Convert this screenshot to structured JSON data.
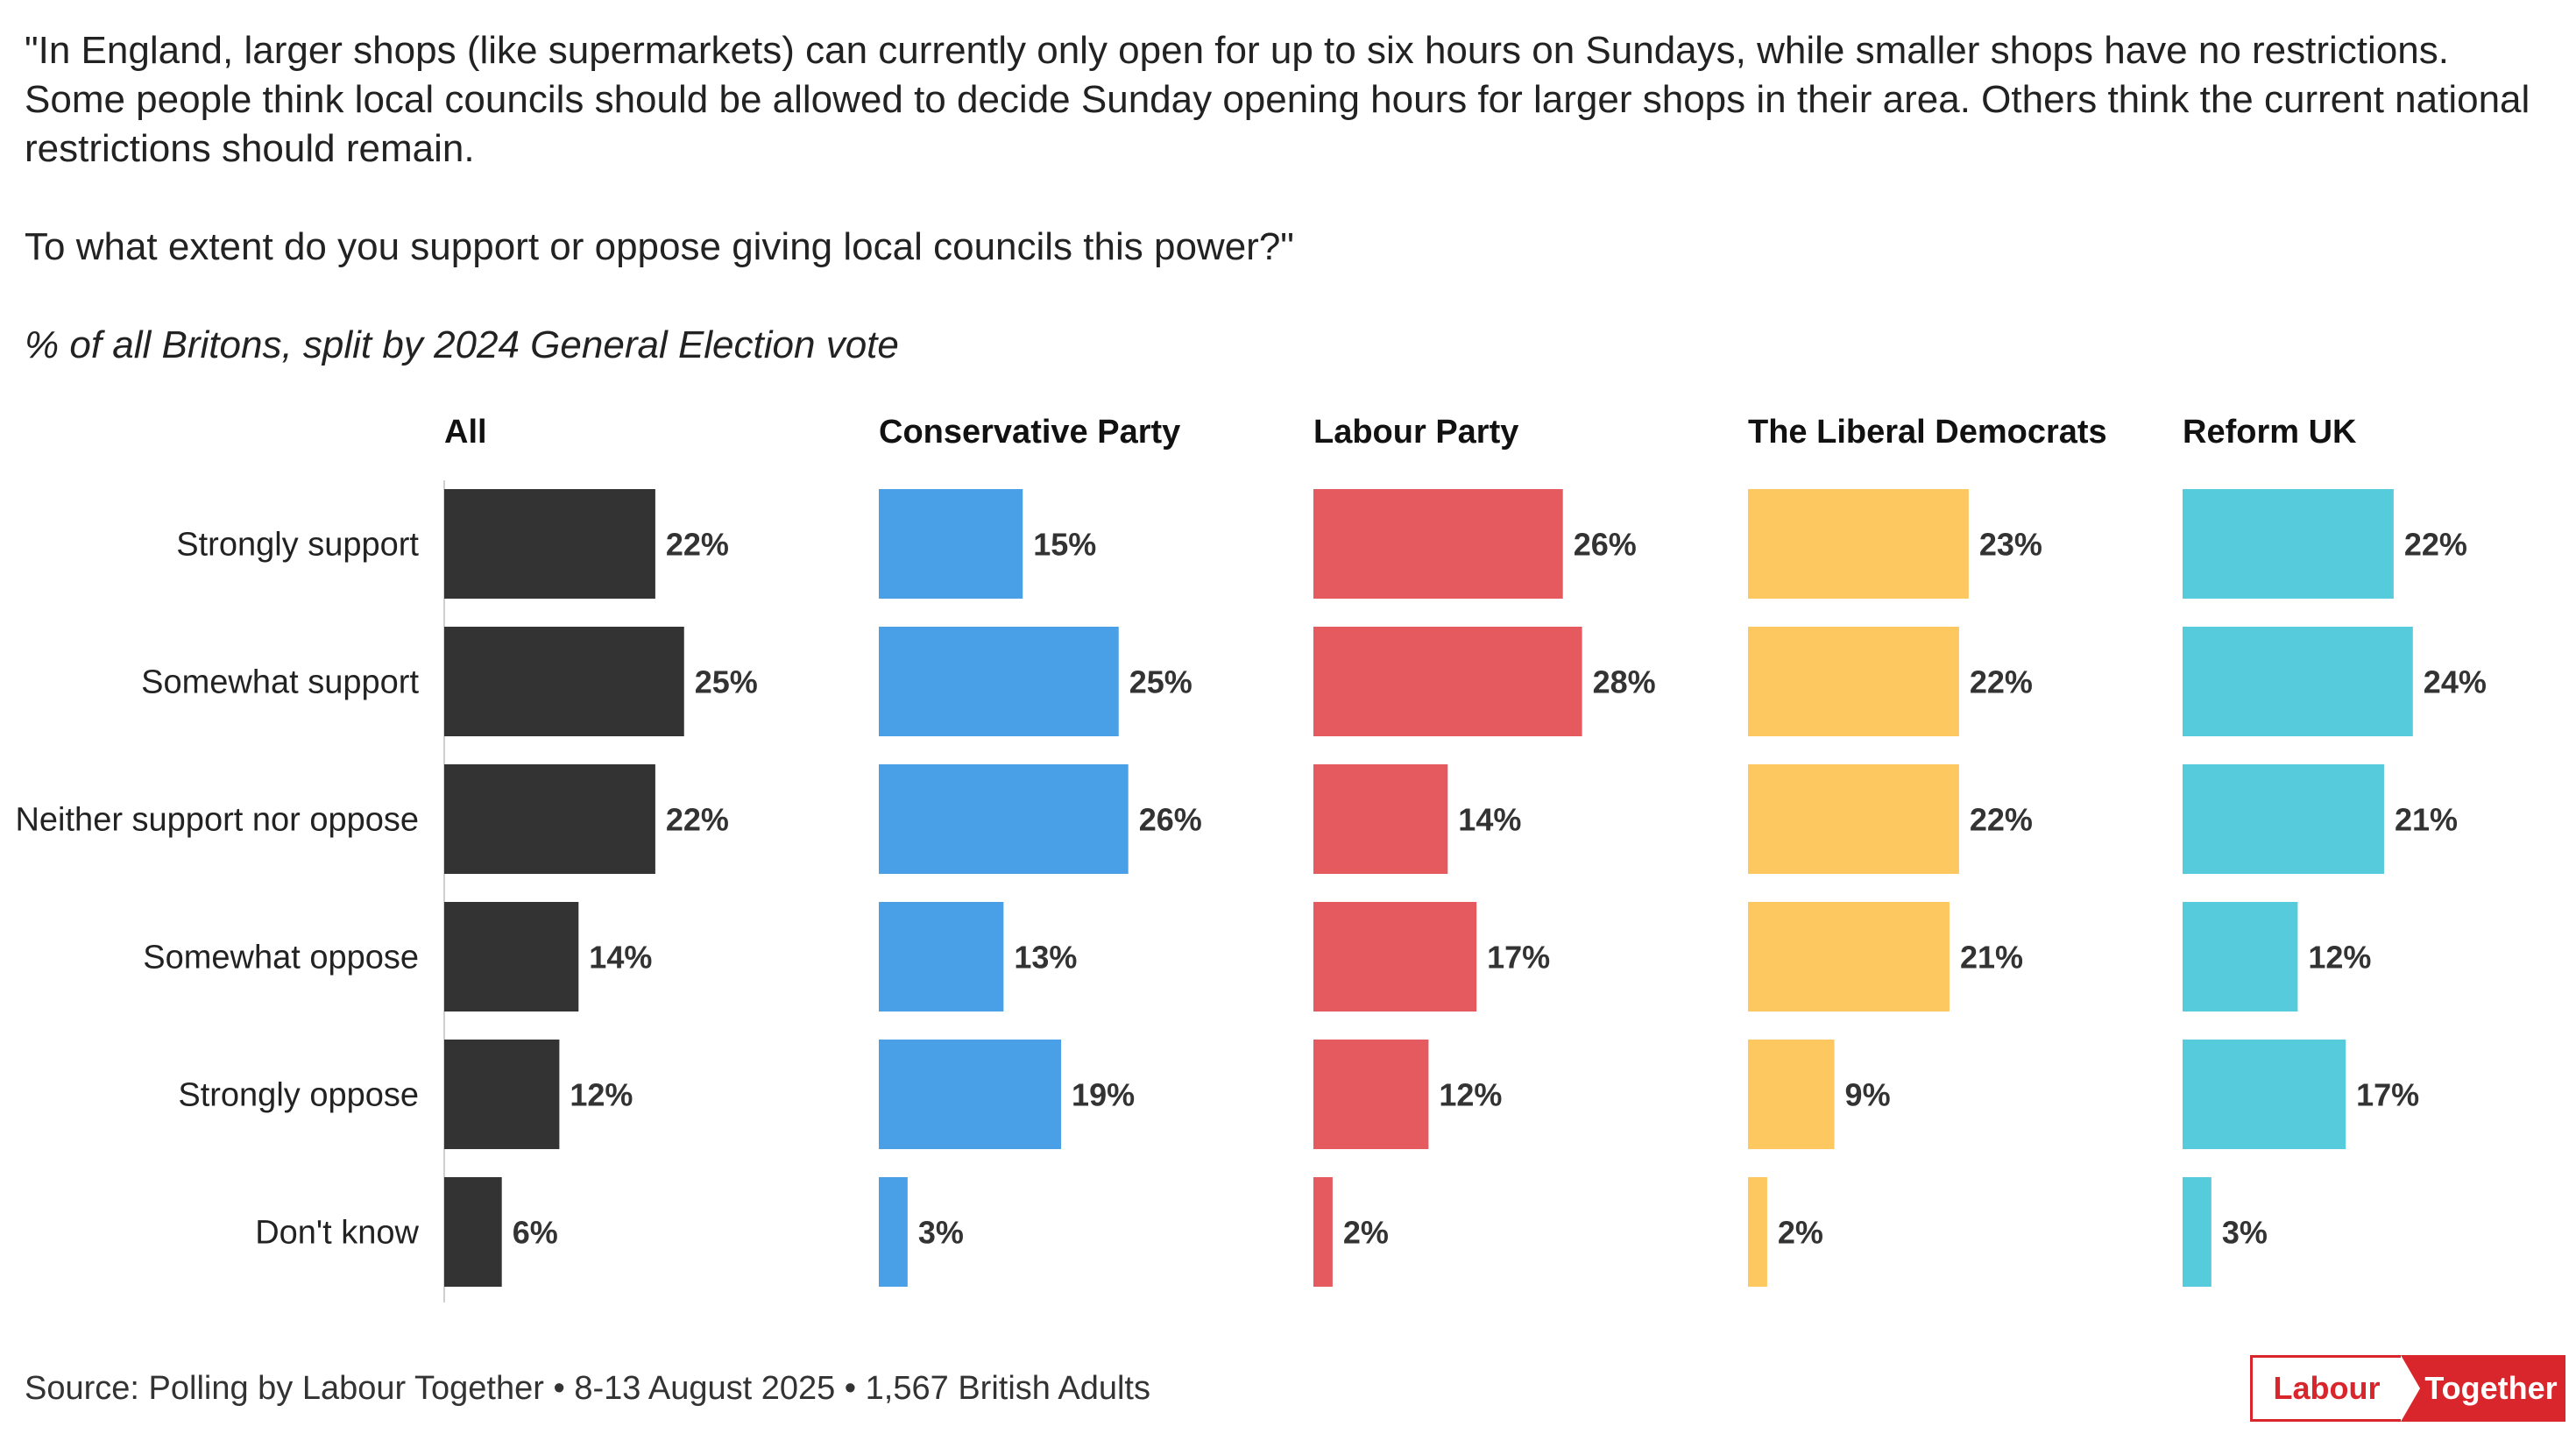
{
  "question": {
    "paragraph1": "\"In England, larger shops (like supermarkets) can currently only open for up to six hours on Sundays, while smaller shops have no restrictions. Some people think local councils should be allowed to decide Sunday opening hours for larger shops in their area. Others think the current national restrictions should remain.",
    "paragraph2": "To what extent do you support or oppose giving local councils this power?\""
  },
  "subtitle": "% of all Britons, split by 2024 General Election vote",
  "source": "Source: Polling by Labour Together • 8-13 August 2025 • 1,567 British Adults",
  "logo": {
    "left": "Labour",
    "right": "Together",
    "color": "#d9262c"
  },
  "chart_data": {
    "type": "bar",
    "orientation": "horizontal",
    "layout": "small-multiples",
    "title": "% of all Britons, split by 2024 General Election vote",
    "categories": [
      "Strongly support",
      "Somewhat support",
      "Neither support nor oppose",
      "Somewhat oppose",
      "Strongly oppose",
      "Don't know"
    ],
    "xlim": [
      0,
      30
    ],
    "unit": "%",
    "grid": false,
    "series": [
      {
        "name": "All",
        "color": "#333333",
        "values": [
          22,
          25,
          22,
          14,
          12,
          6
        ]
      },
      {
        "name": "Conservative Party",
        "color": "#4aa0e6",
        "values": [
          15,
          25,
          26,
          13,
          19,
          3
        ]
      },
      {
        "name": "Labour Party",
        "color": "#e45a5f",
        "values": [
          26,
          28,
          14,
          17,
          12,
          2
        ]
      },
      {
        "name": "The Liberal Democrats",
        "color": "#fdc860",
        "values": [
          23,
          22,
          22,
          21,
          9,
          2
        ]
      },
      {
        "name": "Reform UK",
        "color": "#56cbdc",
        "values": [
          22,
          24,
          21,
          12,
          17,
          3
        ]
      }
    ]
  }
}
